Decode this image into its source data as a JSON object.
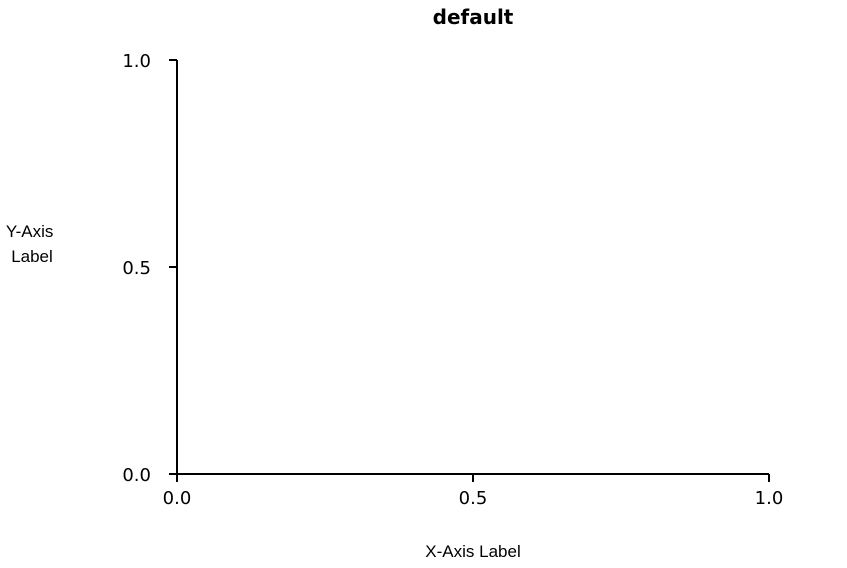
{
  "chart_data": {
    "type": "line",
    "title": "default",
    "xlabel": "X-Axis Label",
    "ylabel_lines": [
      "Y-Axis",
      "Label"
    ],
    "xlim": [
      0.0,
      1.0
    ],
    "ylim": [
      0.0,
      1.0
    ],
    "x_ticks": [
      0.0,
      0.5,
      1.0
    ],
    "x_tick_labels": [
      "0.0",
      "0.5",
      "1.0"
    ],
    "y_ticks": [
      0.0,
      0.5,
      1.0
    ],
    "y_tick_labels": [
      "0.0",
      "0.5",
      "1.0"
    ],
    "grid": false,
    "series": [],
    "colors": {
      "axis": "#000000",
      "background": "#ffffff"
    }
  }
}
